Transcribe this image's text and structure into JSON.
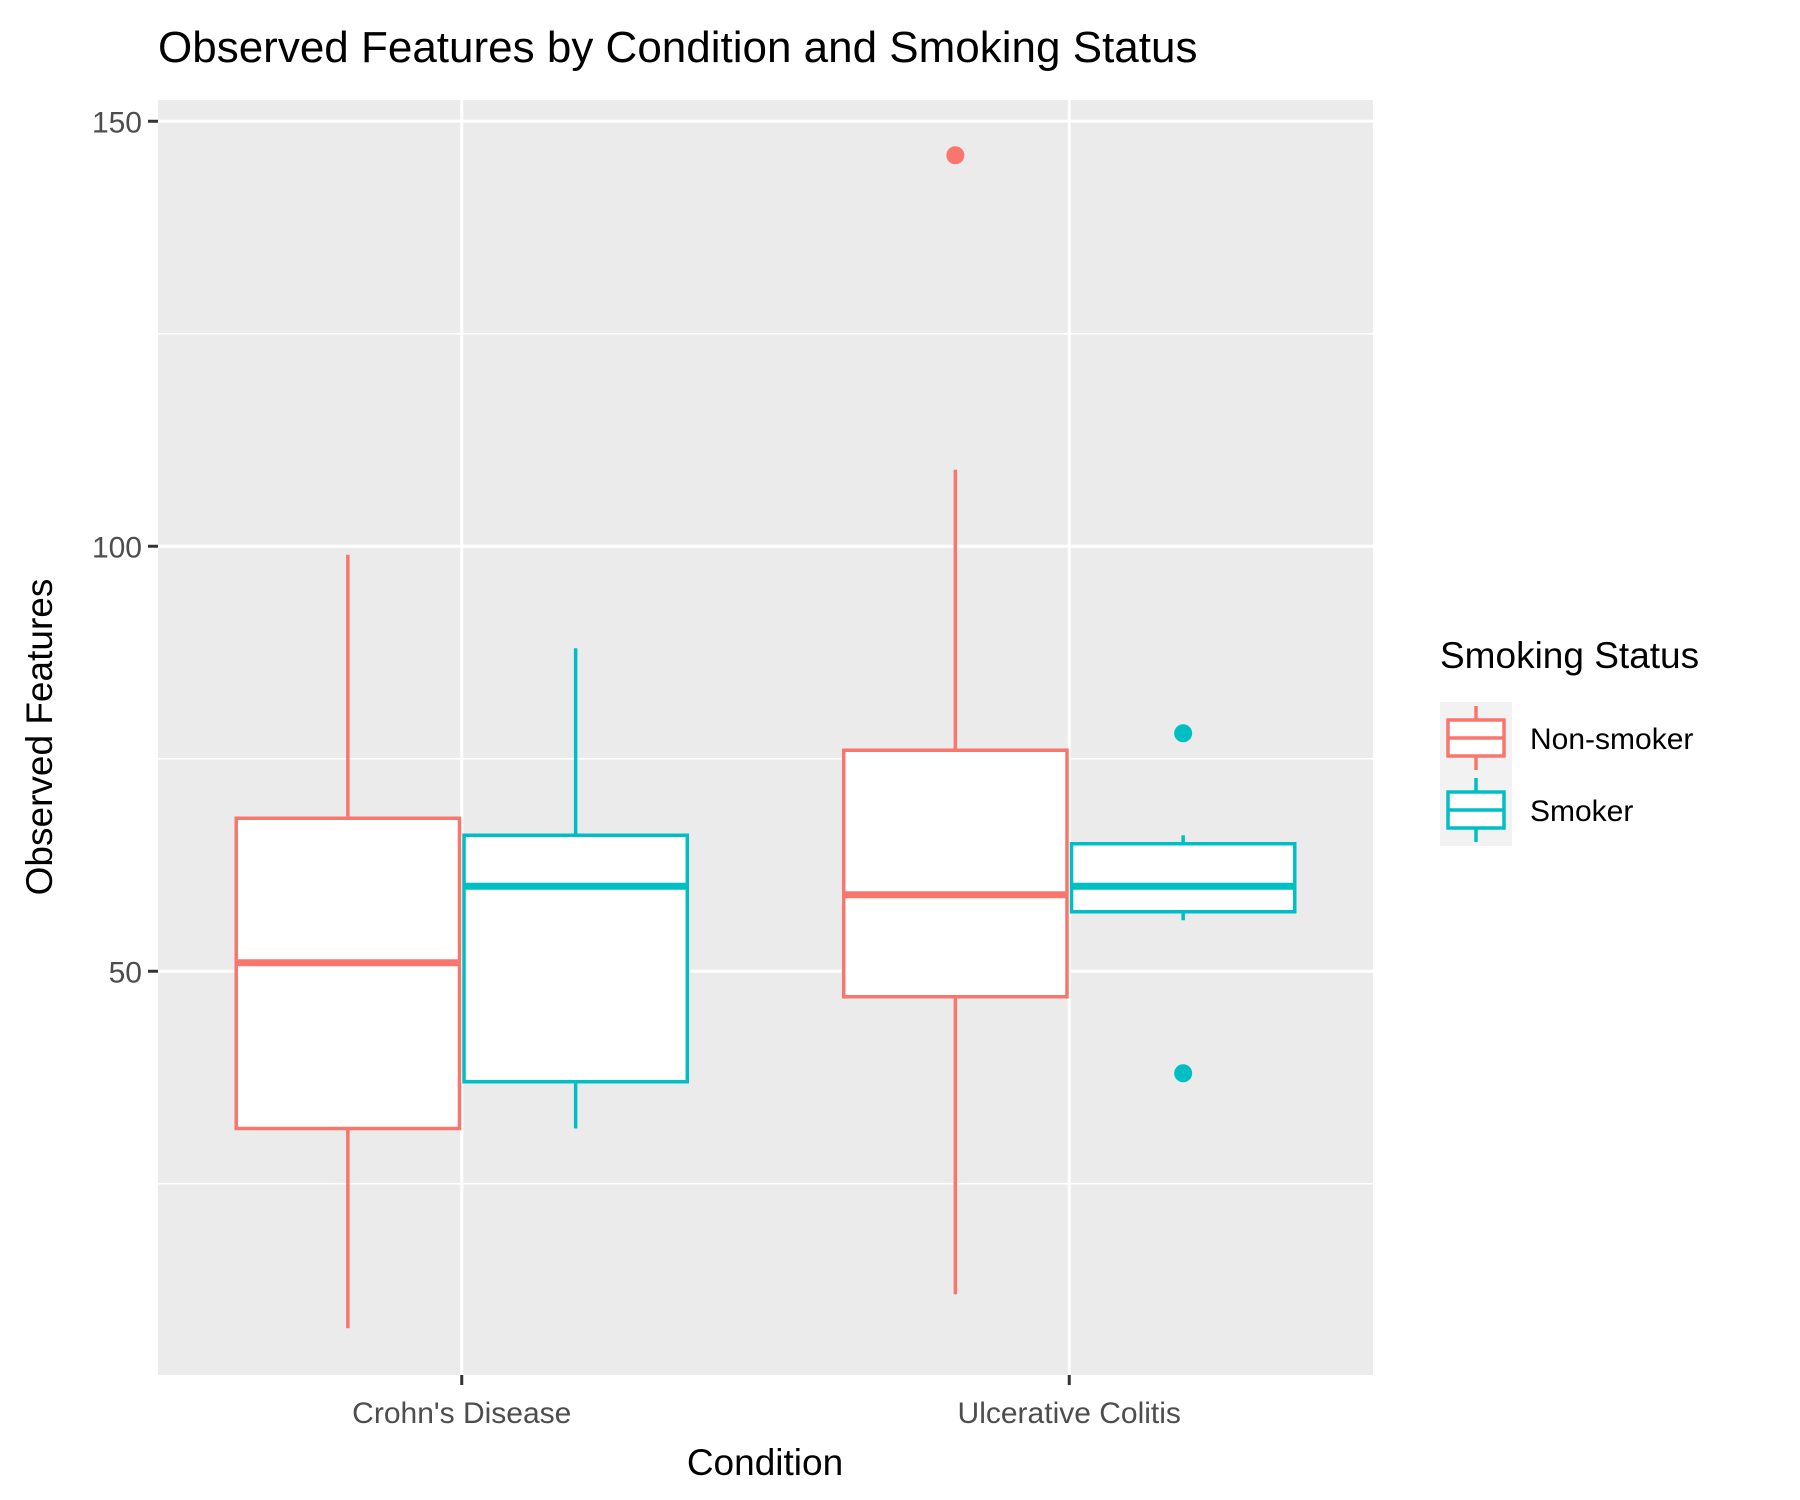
{
  "chart_data": {
    "type": "boxplot",
    "title": "Observed Features by Condition and Smoking Status",
    "xlabel": "Condition",
    "ylabel": "Observed Features",
    "categories": [
      "Crohn's Disease",
      "Ulcerative Colitis"
    ],
    "ylim": [
      2.5,
      152.5
    ],
    "yticks": [
      50,
      100,
      150
    ],
    "yticks_labels": [
      "50",
      "100",
      "150"
    ],
    "grid": true,
    "legend": {
      "title": "Smoking Status",
      "position": "right",
      "entries": [
        "Non-smoker",
        "Smoker"
      ]
    },
    "colors": {
      "Non-smoker": "#F8766D",
      "Smoker": "#00BFC4",
      "panel": "#EBEBEB",
      "grid": "#FFFFFF"
    },
    "series": [
      {
        "name": "Non-smoker",
        "boxes": [
          {
            "category": "Crohn's Disease",
            "whisker_low": 8,
            "q1": 31.5,
            "median": 51,
            "q3": 68,
            "whisker_high": 99,
            "outliers": []
          },
          {
            "category": "Ulcerative Colitis",
            "whisker_low": 12,
            "q1": 47,
            "median": 59,
            "q3": 76,
            "whisker_high": 109,
            "outliers": [
              146
            ]
          }
        ]
      },
      {
        "name": "Smoker",
        "boxes": [
          {
            "category": "Crohn's Disease",
            "whisker_low": 31.5,
            "q1": 37,
            "median": 60,
            "q3": 66,
            "whisker_high": 88,
            "outliers": []
          },
          {
            "category": "Ulcerative Colitis",
            "whisker_low": 56,
            "q1": 57,
            "median": 60,
            "q3": 65,
            "whisker_high": 66,
            "outliers": [
              78,
              38
            ]
          }
        ]
      }
    ]
  }
}
